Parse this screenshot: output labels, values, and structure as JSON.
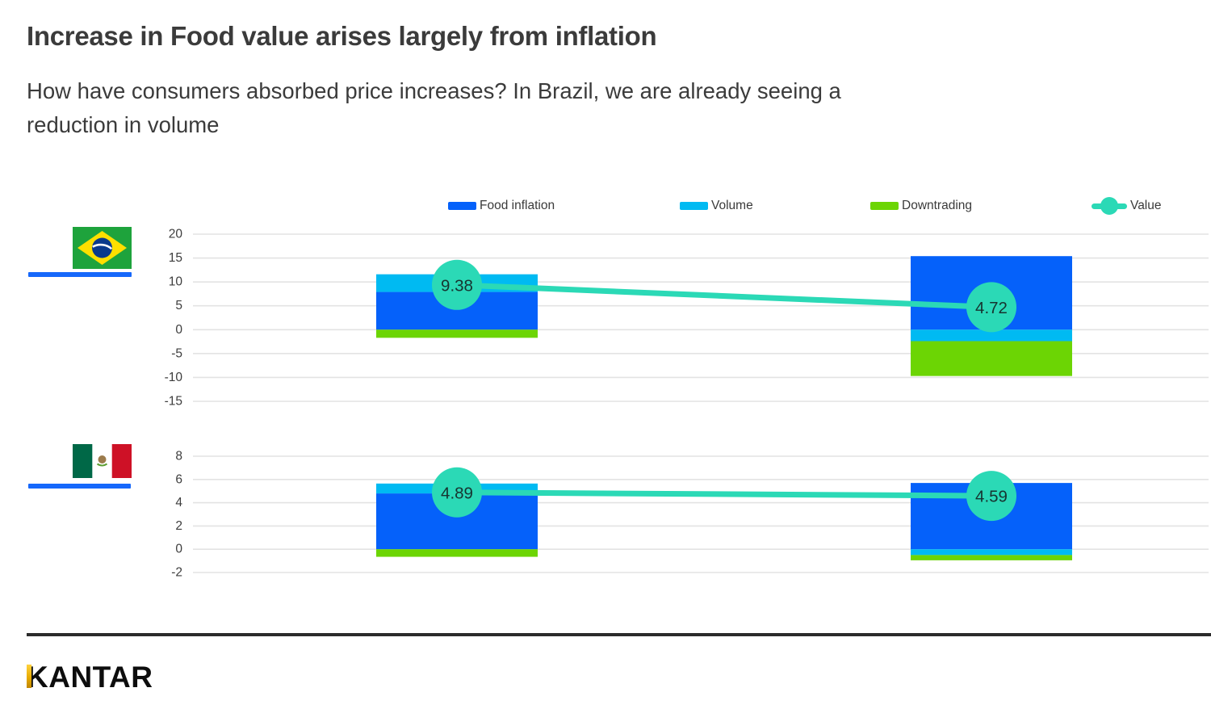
{
  "title": "Increase in Food value arises largely from inflation",
  "subtitle": "How have consumers absorbed price increases? In Brazil, we are already seeing a reduction in volume",
  "subtitle_lines": [
    "How have consumers absorbed price increases? In Brazil, we are already seeing a",
    "reduction in volume"
  ],
  "legend": [
    {
      "label": "Food inflation",
      "color": "#0561FA",
      "marker": "swatch"
    },
    {
      "label": "Volume",
      "color": "#00BAF2",
      "marker": "swatch"
    },
    {
      "label": "Downtrading",
      "color": "#6CD504",
      "marker": "swatch"
    },
    {
      "label": "Value",
      "color": "#2BD9B6",
      "marker": "line-dot"
    }
  ],
  "colors": {
    "flag_underline": "#1668FB",
    "gridline": "#e3e3e3",
    "axis_text": "#3d3d3d",
    "value_label_text": "#173430",
    "divider": "#2b2b2b"
  },
  "chart_data": [
    {
      "type": "bar",
      "country": "Brazil",
      "stacked": true,
      "grid": true,
      "legend_position": "top",
      "x_tick_labels": [],
      "ylim": [
        -15,
        20
      ],
      "yticks": [
        20,
        15,
        10,
        5,
        0,
        -5,
        -10,
        -15
      ],
      "series": [
        {
          "name": "Food inflation",
          "values": [
            7.9,
            15.4
          ]
        },
        {
          "name": "Volume",
          "values": [
            3.7,
            -2.4
          ]
        },
        {
          "name": "Downtrading",
          "values": [
            -1.7,
            -7.3
          ]
        }
      ],
      "value_line": {
        "name": "Value",
        "values": [
          9.38,
          4.72
        ],
        "labels": [
          "9.38",
          "4.72"
        ]
      }
    },
    {
      "type": "bar",
      "country": "Mexico",
      "stacked": true,
      "grid": true,
      "legend_position": "top",
      "x_tick_labels": [],
      "ylim": [
        -2,
        8
      ],
      "yticks": [
        8,
        6,
        4,
        2,
        0,
        -2
      ],
      "series": [
        {
          "name": "Food inflation",
          "values": [
            4.8,
            5.7
          ]
        },
        {
          "name": "Volume",
          "values": [
            0.85,
            -0.5
          ]
        },
        {
          "name": "Downtrading",
          "values": [
            -0.65,
            -0.45
          ]
        }
      ],
      "value_line": {
        "name": "Value",
        "values": [
          4.89,
          4.59
        ],
        "labels": [
          "4.89",
          "4.59"
        ]
      }
    }
  ],
  "footer": {
    "brand": "KANTAR"
  }
}
